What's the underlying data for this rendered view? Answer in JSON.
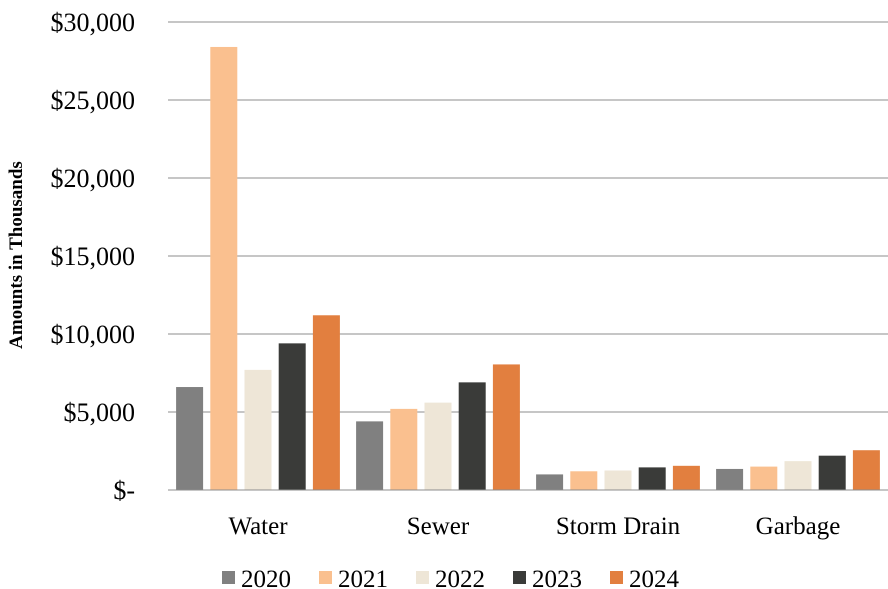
{
  "chart_data": {
    "type": "bar",
    "title": "",
    "xlabel": "",
    "ylabel": "Amounts in Thousands",
    "categories": [
      "Water",
      "Sewer",
      "Storm Drain",
      "Garbage"
    ],
    "series": [
      {
        "name": "2020",
        "color": "#808080",
        "values": [
          6600,
          4400,
          1000,
          1350
        ]
      },
      {
        "name": "2021",
        "color": "#fac08f",
        "values": [
          28400,
          5200,
          1200,
          1500
        ]
      },
      {
        "name": "2022",
        "color": "#eee6d7",
        "values": [
          7700,
          5600,
          1250,
          1850
        ]
      },
      {
        "name": "2023",
        "color": "#3a3b39",
        "values": [
          9400,
          6900,
          1450,
          2200
        ]
      },
      {
        "name": "2024",
        "color": "#e27f3f",
        "values": [
          11200,
          8050,
          1550,
          2550
        ]
      }
    ],
    "ylim": [
      0,
      30000
    ],
    "y_ticks": [
      0,
      5000,
      10000,
      15000,
      20000,
      25000,
      30000
    ],
    "y_tick_labels": [
      "$-",
      "$5,000",
      "$10,000",
      "$15,000",
      "$20,000",
      "$25,000",
      "$30,000"
    ],
    "grid": true,
    "legend_position": "bottom"
  }
}
